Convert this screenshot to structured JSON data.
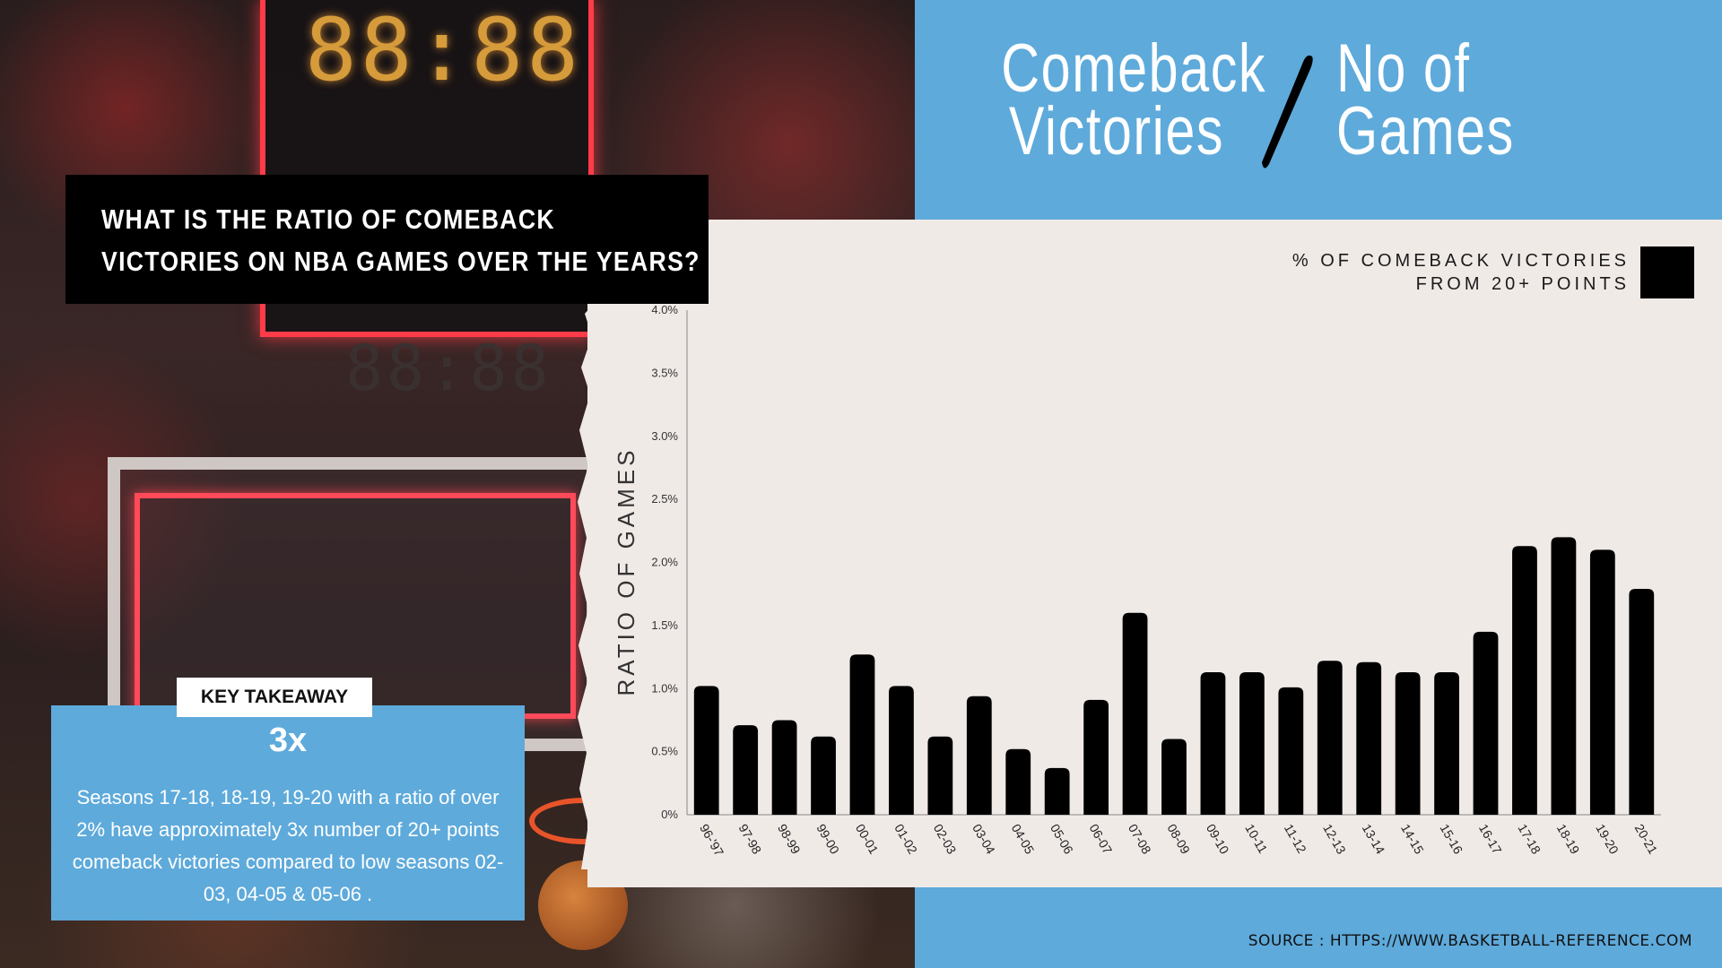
{
  "header": {
    "title_left_line1": "Comeback",
    "title_left_line2": "Victories",
    "title_right_line1": "No of",
    "title_right_line2": "Games"
  },
  "question": {
    "line1": "WHAT IS THE RATIO OF COMEBACK",
    "line2": "VICTORIES ON NBA GAMES OVER THE YEARS?"
  },
  "legend": {
    "line1": "% OF COMEBACK VICTORIES",
    "line2": "FROM 20+ POINTS"
  },
  "takeaway": {
    "tab_label": "KEY TAKEAWAY",
    "headline": "3x",
    "text": "Seasons 17-18, 18-19, 19-20 with a ratio of over 2% have approximately 3x number of 20+ points comeback victories compared to low seasons 02-03, 04-05 & 05-06 ."
  },
  "source": "SOURCE : HTTPS://WWW.BASKETBALL-REFERENCE.COM",
  "colors": {
    "accent_blue": "#5eaadb",
    "panel": "#f0eae7",
    "bar": "#000000"
  },
  "chart_data": {
    "type": "bar",
    "ylabel": "RATIO OF GAMES",
    "ylim": [
      0,
      4.0
    ],
    "yticks": [
      "0%",
      "0.5%",
      "1.0%",
      "1.5%",
      "2.0%",
      "2.5%",
      "3.0%",
      "3.5%",
      "4.0%"
    ],
    "ytick_values": [
      0,
      0.5,
      1.0,
      1.5,
      2.0,
      2.5,
      3.0,
      3.5,
      4.0
    ],
    "categories": [
      "96-'97",
      "97-98",
      "98-99",
      "99-00",
      "00-01",
      "01-02",
      "02-03",
      "03-04",
      "04-05",
      "05-06",
      "06-07",
      "07-08",
      "08-09",
      "09-10",
      "10-11",
      "11-12",
      "12-13",
      "13-14",
      "14-15",
      "15-16",
      "16-17",
      "17-18",
      "18-19",
      "19-20",
      "20-21"
    ],
    "values": [
      1.02,
      0.71,
      0.75,
      0.62,
      1.27,
      1.02,
      0.62,
      0.94,
      0.52,
      0.37,
      0.91,
      1.6,
      0.6,
      1.13,
      1.13,
      1.01,
      1.22,
      1.21,
      1.13,
      1.13,
      1.45,
      2.13,
      2.2,
      2.1,
      1.79
    ],
    "legend_placement": "top-right",
    "grid": false
  }
}
